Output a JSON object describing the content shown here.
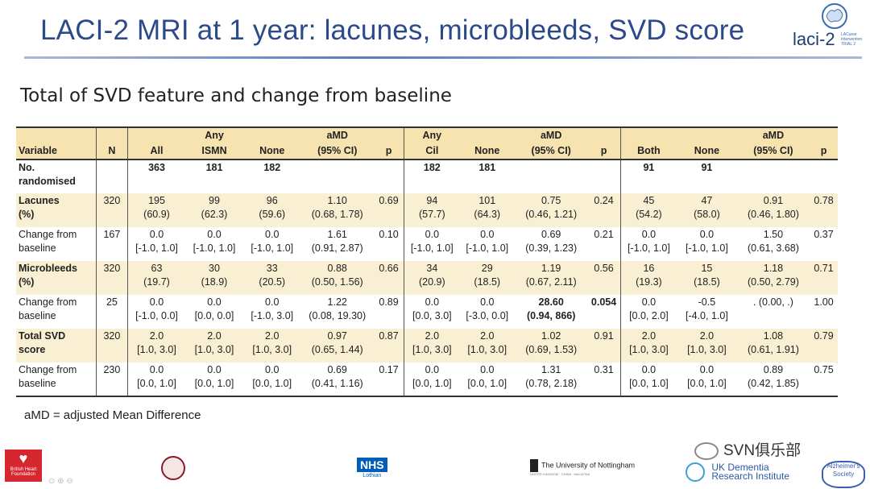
{
  "slide": {
    "title": "LACI-2 MRI at 1 year: lacunes, microbleeds, SVD score",
    "subtitle": "Total of SVD feature and change from baseline",
    "brand": {
      "text": "laci-2",
      "sub": "LACunar Intervention TRIAL 2"
    },
    "footnote": "aMD = adjusted Mean Difference"
  },
  "table": {
    "header1": [
      "",
      "",
      "",
      "Any",
      "",
      "aMD",
      "",
      "Any",
      "",
      "aMD",
      "",
      "",
      "",
      "aMD",
      ""
    ],
    "header2": [
      "Variable",
      "N",
      "All",
      "ISMN",
      "None",
      "(95% CI)",
      "p",
      "Cil",
      "None",
      "(95% CI)",
      "p",
      "Both",
      "None",
      "(95% CI)",
      "p"
    ],
    "rows": [
      {
        "style": "white",
        "var1": "No.",
        "var2": "randomised",
        "varbold": true,
        "cells": [
          [
            "",
            ""
          ],
          [
            "363",
            ""
          ],
          [
            "181",
            ""
          ],
          [
            "182",
            ""
          ],
          [
            "",
            ""
          ],
          [
            "",
            ""
          ],
          [
            "182",
            ""
          ],
          [
            "181",
            ""
          ],
          [
            "",
            ""
          ],
          [
            "",
            ""
          ],
          [
            "91",
            ""
          ],
          [
            "91",
            ""
          ],
          [
            "",
            ""
          ],
          [
            "",
            ""
          ]
        ]
      },
      {
        "style": "shaded",
        "var1": "Lacunes",
        "var2": "(%)",
        "varbold": true,
        "cells": [
          [
            "320",
            ""
          ],
          [
            "195",
            "(60.9)"
          ],
          [
            "99",
            "(62.3)"
          ],
          [
            "96",
            "(59.6)"
          ],
          [
            "1.10",
            "(0.68, 1.78)"
          ],
          [
            "0.69",
            ""
          ],
          [
            "94",
            "(57.7)"
          ],
          [
            "101",
            "(64.3)"
          ],
          [
            "0.75",
            "(0.46, 1.21)"
          ],
          [
            "0.24",
            ""
          ],
          [
            "45",
            "(54.2)"
          ],
          [
            "47",
            "(58.0)"
          ],
          [
            "0.91",
            "(0.46, 1.80)"
          ],
          [
            "0.78",
            ""
          ]
        ]
      },
      {
        "style": "white",
        "var1": "Change from",
        "var2": "baseline",
        "varbold": false,
        "cells": [
          [
            "167",
            ""
          ],
          [
            "0.0",
            "[-1.0, 1.0]"
          ],
          [
            "0.0",
            "[-1.0, 1.0]"
          ],
          [
            "0.0",
            "[-1.0, 1.0]"
          ],
          [
            "1.61",
            "(0.91, 2.87)"
          ],
          [
            "0.10",
            ""
          ],
          [
            "0.0",
            "[-1.0, 1.0]"
          ],
          [
            "0.0",
            "[-1.0, 1.0]"
          ],
          [
            "0.69",
            "(0.39, 1.23)"
          ],
          [
            "0.21",
            ""
          ],
          [
            "0.0",
            "[-1.0, 1.0]"
          ],
          [
            "0.0",
            "[-1.0, 1.0]"
          ],
          [
            "1.50",
            "(0.61, 3.68)"
          ],
          [
            "0.37",
            ""
          ]
        ]
      },
      {
        "style": "shaded",
        "var1": "Microbleeds",
        "var2": "(%)",
        "varbold": true,
        "cells": [
          [
            "320",
            ""
          ],
          [
            "63",
            "(19.7)"
          ],
          [
            "30",
            "(18.9)"
          ],
          [
            "33",
            "(20.5)"
          ],
          [
            "0.88",
            "(0.50, 1.56)"
          ],
          [
            "0.66",
            ""
          ],
          [
            "34",
            "(20.9)"
          ],
          [
            "29",
            "(18.5)"
          ],
          [
            "1.19",
            "(0.67, 2.11)"
          ],
          [
            "0.56",
            ""
          ],
          [
            "16",
            "(19.3)"
          ],
          [
            "15",
            "(18.5)"
          ],
          [
            "1.18",
            "(0.50, 2.79)"
          ],
          [
            "0.71",
            ""
          ]
        ]
      },
      {
        "style": "white",
        "var1": "Change from",
        "var2": "baseline",
        "varbold": false,
        "cells": [
          [
            "25",
            ""
          ],
          [
            "0.0",
            "[-1.0, 0.0]"
          ],
          [
            "0.0",
            "[0.0, 0.0]"
          ],
          [
            "0.0",
            "[-1.0, 3.0]"
          ],
          [
            "1.22",
            "(0.08, 19.30)"
          ],
          [
            "0.89",
            ""
          ],
          [
            "0.0",
            "[0.0, 3.0]"
          ],
          [
            "0.0",
            "[-3.0, 0.0]"
          ],
          [
            "28.60",
            "(0.94, 866)"
          ],
          [
            "0.054",
            ""
          ],
          [
            "0.0",
            "[0.0, 2.0]"
          ],
          [
            "-0.5",
            "[-4.0, 1.0]"
          ],
          [
            ". (0.00, .)",
            ""
          ],
          [
            "1.00",
            ""
          ]
        ]
      },
      {
        "style": "shaded",
        "var1": "Total SVD",
        "var2": "score",
        "varbold": true,
        "cells": [
          [
            "320",
            ""
          ],
          [
            "2.0",
            "[1.0, 3.0]"
          ],
          [
            "2.0",
            "[1.0, 3.0]"
          ],
          [
            "2.0",
            "[1.0, 3.0]"
          ],
          [
            "0.97",
            "(0.65, 1.44)"
          ],
          [
            "0.87",
            ""
          ],
          [
            "2.0",
            "[1.0, 3.0]"
          ],
          [
            "2.0",
            "[1.0, 3.0]"
          ],
          [
            "1.02",
            "(0.69, 1.53)"
          ],
          [
            "0.91",
            ""
          ],
          [
            "2.0",
            "[1.0, 3.0]"
          ],
          [
            "2.0",
            "[1.0, 3.0]"
          ],
          [
            "1.08",
            "(0.61, 1.91)"
          ],
          [
            "0.79",
            ""
          ]
        ]
      },
      {
        "style": "white",
        "var1": "Change from",
        "var2": "baseline",
        "varbold": false,
        "cells": [
          [
            "230",
            ""
          ],
          [
            "0.0",
            "[0.0, 1.0]"
          ],
          [
            "0.0",
            "[0.0, 1.0]"
          ],
          [
            "0.0",
            "[0.0, 1.0]"
          ],
          [
            "0.69",
            "(0.41, 1.16)"
          ],
          [
            "0.17",
            ""
          ],
          [
            "0.0",
            "[0.0, 1.0]"
          ],
          [
            "0.0",
            "[0.0, 1.0]"
          ],
          [
            "1.31",
            "(0.78, 2.18)"
          ],
          [
            "0.31",
            ""
          ],
          [
            "0.0",
            "[0.0, 1.0]"
          ],
          [
            "0.0",
            "[0.0, 1.0]"
          ],
          [
            "0.89",
            "(0.42, 1.85)"
          ],
          [
            "0.75",
            ""
          ]
        ]
      }
    ]
  },
  "logos": {
    "bhf": "British Heart Foundation",
    "nhs": "NHS",
    "nhs_sub": "Lothian",
    "notts": "The University of Nottingham",
    "notts_strip": "UNITED KINGDOM · CHINA · MALAYSIA",
    "ukdri1": "UK Dementia",
    "ukdri2": "Research Institute",
    "alz": "Alzheimer's Society",
    "watermark": "SVN俱乐部"
  }
}
